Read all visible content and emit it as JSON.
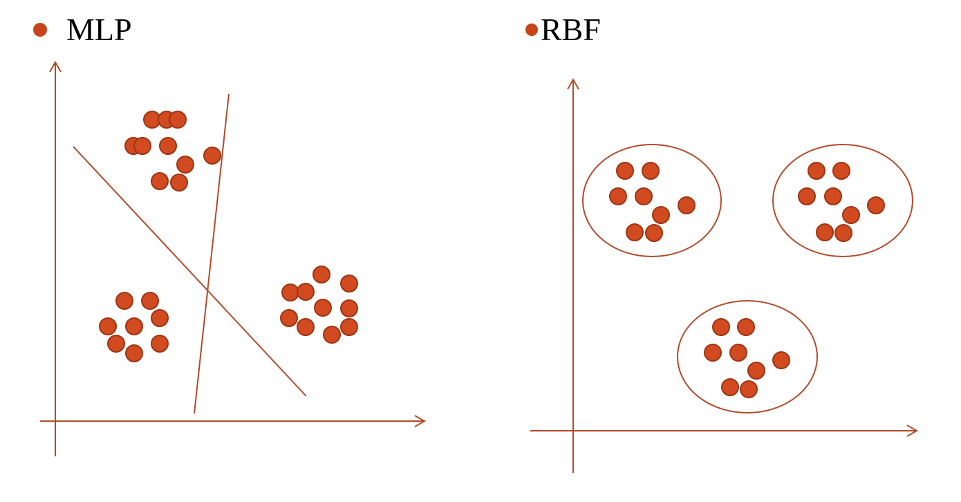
{
  "colors": {
    "accent": "#c8441a",
    "point_fill": "#d24a1f",
    "point_stroke": "#9c3514",
    "line": "#b04a2a",
    "text": "#000000"
  },
  "mlp": {
    "title": "MLP",
    "bullet_icon": "bullet-dot-icon",
    "clusters": [
      {
        "name": "upper-left",
        "points": [
          [
            220,
            173
          ],
          [
            241,
            173
          ],
          [
            257,
            173
          ],
          [
            193,
            211
          ],
          [
            206,
            211
          ],
          [
            243,
            211
          ],
          [
            268,
            238
          ],
          [
            307,
            225
          ],
          [
            231,
            262
          ],
          [
            259,
            264
          ]
        ]
      },
      {
        "name": "lower-left",
        "points": [
          [
            180,
            435
          ],
          [
            217,
            435
          ],
          [
            231,
            460
          ],
          [
            156,
            472
          ],
          [
            194,
            472
          ],
          [
            168,
            497
          ],
          [
            231,
            497
          ],
          [
            194,
            511
          ]
        ]
      },
      {
        "name": "right",
        "points": [
          [
            465,
            397
          ],
          [
            505,
            410
          ],
          [
            420,
            423
          ],
          [
            442,
            422
          ],
          [
            467,
            445
          ],
          [
            505,
            446
          ],
          [
            418,
            460
          ],
          [
            442,
            473
          ],
          [
            480,
            484
          ],
          [
            505,
            473
          ]
        ]
      }
    ]
  },
  "rbf": {
    "title": "RBF",
    "bullet_icon": "bullet-dot-icon",
    "clusters": [
      {
        "name": "upper-left",
        "points": [
          [
            904,
            247
          ],
          [
            941,
            247
          ],
          [
            894,
            284
          ],
          [
            931,
            284
          ],
          [
            956,
            311
          ],
          [
            993,
            297
          ],
          [
            918,
            336
          ],
          [
            946,
            337
          ]
        ]
      },
      {
        "name": "upper-right",
        "points": [
          [
            1181,
            247
          ],
          [
            1217,
            247
          ],
          [
            1167,
            284
          ],
          [
            1205,
            284
          ],
          [
            1231,
            311
          ],
          [
            1267,
            297
          ],
          [
            1193,
            336
          ],
          [
            1220,
            337
          ]
        ]
      },
      {
        "name": "bottom",
        "points": [
          [
            1043,
            473
          ],
          [
            1079,
            473
          ],
          [
            1031,
            510
          ],
          [
            1068,
            510
          ],
          [
            1094,
            536
          ],
          [
            1130,
            521
          ],
          [
            1056,
            560
          ],
          [
            1083,
            563
          ]
        ]
      }
    ]
  }
}
